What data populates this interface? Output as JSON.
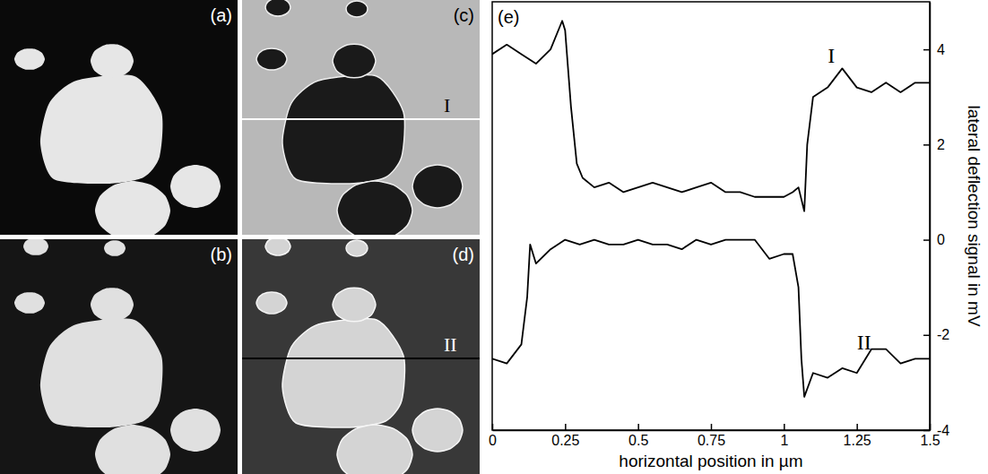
{
  "panels": [
    {
      "label": "(a)"
    },
    {
      "label": "(b)"
    },
    {
      "label": "(c)",
      "line_label": "I"
    },
    {
      "label": "(d)",
      "line_label": "II"
    }
  ],
  "chart_data": {
    "type": "line",
    "title": "(e)",
    "x_label": "horizontal position in µm",
    "y_label": "lateral deflection signal in mV",
    "xlim": [
      0,
      1.5
    ],
    "xticks": [
      0,
      0.25,
      0.5,
      0.75,
      1,
      1.25,
      1.5
    ],
    "ylim": [
      -4,
      5
    ],
    "yticks": [
      -4,
      -2,
      0,
      2,
      4
    ],
    "grid": false,
    "color": "#000000",
    "line_style": "solid",
    "series": [
      {
        "name": "I",
        "color": "#000000",
        "x": [
          0,
          0.05,
          0.1,
          0.15,
          0.2,
          0.24,
          0.25,
          0.27,
          0.29,
          0.31,
          0.35,
          0.4,
          0.45,
          0.5,
          0.55,
          0.6,
          0.65,
          0.7,
          0.75,
          0.8,
          0.85,
          0.9,
          0.95,
          1.0,
          1.03,
          1.05,
          1.07,
          1.08,
          1.1,
          1.15,
          1.2,
          1.25,
          1.3,
          1.35,
          1.4,
          1.45,
          1.5
        ],
        "values": [
          3.9,
          4.1,
          3.9,
          3.7,
          4.0,
          4.6,
          4.4,
          2.8,
          1.6,
          1.3,
          1.1,
          1.2,
          1.0,
          1.1,
          1.2,
          1.1,
          1.0,
          1.1,
          1.2,
          1.0,
          1.0,
          0.9,
          0.9,
          0.9,
          1.0,
          1.1,
          0.6,
          2.0,
          3.0,
          3.2,
          3.6,
          3.2,
          3.1,
          3.3,
          3.1,
          3.3,
          3.3
        ]
      },
      {
        "name": "II",
        "color": "#000000",
        "x": [
          0,
          0.05,
          0.1,
          0.12,
          0.13,
          0.15,
          0.2,
          0.25,
          0.3,
          0.35,
          0.4,
          0.45,
          0.5,
          0.55,
          0.6,
          0.65,
          0.7,
          0.75,
          0.8,
          0.85,
          0.9,
          0.95,
          1.0,
          1.03,
          1.05,
          1.06,
          1.07,
          1.1,
          1.15,
          1.2,
          1.25,
          1.3,
          1.35,
          1.4,
          1.45,
          1.5
        ],
        "values": [
          -2.5,
          -2.6,
          -2.2,
          -1.2,
          -0.1,
          -0.5,
          -0.2,
          0,
          -0.1,
          0,
          -0.1,
          -0.1,
          0,
          -0.1,
          -0.1,
          -0.2,
          0,
          -0.1,
          0,
          0,
          0,
          -0.4,
          -0.3,
          -0.3,
          -1.0,
          -2.5,
          -3.3,
          -2.8,
          -2.9,
          -2.7,
          -2.8,
          -2.3,
          -2.3,
          -2.6,
          -2.5,
          -2.5
        ]
      }
    ]
  }
}
